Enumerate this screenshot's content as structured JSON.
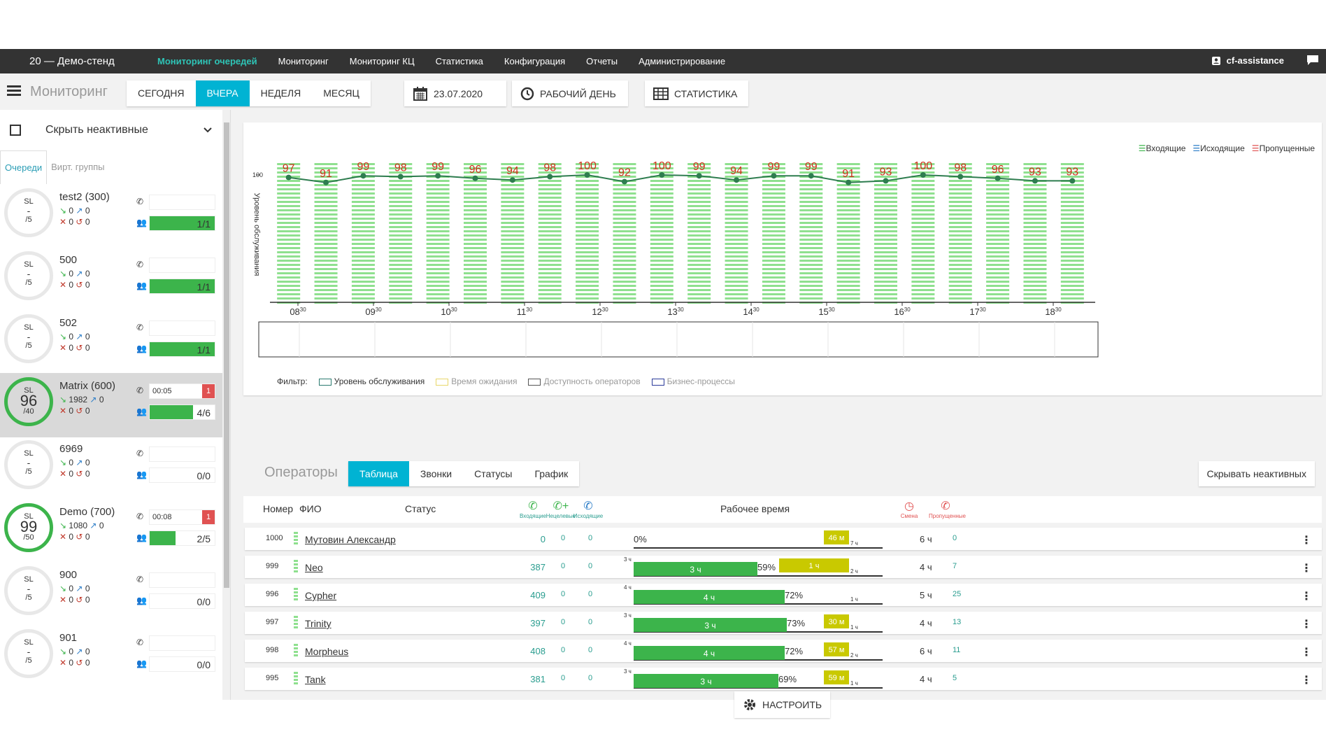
{
  "topbar": {
    "brand": "20 — Демо-стенд",
    "nav": [
      "Мониторинг очередей",
      "Мониторинг",
      "Мониторинг КЦ",
      "Статистика",
      "Конфигурация",
      "Отчеты",
      "Администрирование"
    ],
    "user": "cf-assistance"
  },
  "toolbar": {
    "title": "Мониторинг",
    "periods": [
      "СЕГОДНЯ",
      "ВЧЕРА",
      "НЕДЕЛЯ",
      "МЕСЯЦ"
    ],
    "date": "23.07.2020",
    "workday": "РАБОЧИЙ ДЕНЬ",
    "stats": "СТАТИСТИКА"
  },
  "sidebar": {
    "hide_inactive": "Скрыть неактивные",
    "tabs": [
      "Очереди",
      "Вирт. группы"
    ],
    "queues": [
      {
        "name": "test2 (300)",
        "sl_label": "SL",
        "sl": "-",
        "sub": "/5",
        "in": "0",
        "out": "0",
        "miss": "0",
        "cb": "0",
        "wait": "",
        "alert": "",
        "ops": "1/1",
        "ops_frac": 1
      },
      {
        "name": "500",
        "sl_label": "SL",
        "sl": "-",
        "sub": "/5",
        "in": "0",
        "out": "0",
        "miss": "0",
        "cb": "0",
        "wait": "",
        "alert": "",
        "ops": "1/1",
        "ops_frac": 1
      },
      {
        "name": "502",
        "sl_label": "SL",
        "sl": "-",
        "sub": "/5",
        "in": "0",
        "out": "0",
        "miss": "0",
        "cb": "0",
        "wait": "",
        "alert": "",
        "ops": "1/1",
        "ops_frac": 1
      },
      {
        "name": "Matrix (600)",
        "sl_label": "SL",
        "sl": "96",
        "sub": "/40",
        "in": "1982",
        "out": "0",
        "miss": "0",
        "cb": "0",
        "wait": "00:05",
        "alert": "1",
        "ops": "4/6",
        "ops_frac": 0.67
      },
      {
        "name": "6969",
        "sl_label": "SL",
        "sl": "-",
        "sub": "/5",
        "in": "0",
        "out": "0",
        "miss": "0",
        "cb": "0",
        "wait": "",
        "alert": "",
        "ops": "0/0",
        "ops_frac": 0
      },
      {
        "name": "Demo (700)",
        "sl_label": "SL",
        "sl": "99",
        "sub": "/50",
        "in": "1080",
        "out": "0",
        "miss": "0",
        "cb": "0",
        "wait": "00:08",
        "alert": "1",
        "ops": "2/5",
        "ops_frac": 0.4
      },
      {
        "name": "900",
        "sl_label": "SL",
        "sl": "-",
        "sub": "/5",
        "in": "0",
        "out": "0",
        "miss": "0",
        "cb": "0",
        "wait": "",
        "alert": "",
        "ops": "0/0",
        "ops_frac": 0
      },
      {
        "name": "901",
        "sl_label": "SL",
        "sl": "-",
        "sub": "/5",
        "in": "0",
        "out": "0",
        "miss": "0",
        "cb": "0",
        "wait": "",
        "alert": "",
        "ops": "0/0",
        "ops_frac": 0
      }
    ]
  },
  "chart_data": {
    "type": "bar",
    "ylabel": "Уровень обслуживания",
    "ytick": "100",
    "x_ticks": [
      "08",
      "09",
      "10",
      "11",
      "12",
      "13",
      "14",
      "15",
      "16",
      "17",
      "18"
    ],
    "x_tick_sup": "30",
    "legend": [
      "Входящие",
      "Исходящие",
      "Пропущенные"
    ],
    "service_level": [
      97,
      91,
      99,
      98,
      99,
      96,
      94,
      98,
      100,
      92,
      100,
      99,
      94,
      99,
      99,
      91,
      93,
      100,
      98,
      96,
      93,
      93
    ],
    "filter_label": "Фильтр:",
    "filters": [
      {
        "label": "Уровень обслуживания",
        "color": "#2a7a6f"
      },
      {
        "label": "Время ожидания",
        "color": "#e8d76a"
      },
      {
        "label": "Доступность операторов",
        "color": "#555555"
      },
      {
        "label": "Бизнес-процессы",
        "color": "#2a3a9a"
      }
    ],
    "colors": {
      "bar": "#8fe08f",
      "line": "#2e7d4f",
      "label": "#d0301b"
    }
  },
  "operators": {
    "title": "Операторы",
    "tabs": [
      "Таблица",
      "Звонки",
      "Статусы",
      "График"
    ],
    "hide_inactive": "Скрывать неактивных",
    "headers": {
      "num": "Номер",
      "name": "ФИО",
      "status": "Статус",
      "in": "Входящие",
      "missed_in": "Нецелевые",
      "out": "Исходящие",
      "worktime": "Рабочее время",
      "shift": "Смена",
      "missed": "Пропущенные"
    },
    "rows": [
      {
        "num": "1000",
        "name": "Мутовин Александр",
        "in": "0",
        "b": "0",
        "c": "0",
        "green": "",
        "green_frac": 0,
        "green_tick": "",
        "pct": "0%",
        "yellow": "46 м",
        "yellow_tick": "7 ч",
        "shift": "6 ч",
        "missed": "0"
      },
      {
        "num": "999",
        "name": "Neo",
        "in": "387",
        "b": "0",
        "c": "0",
        "green": "3 ч",
        "green_frac": 0.59,
        "green_tick": "3 ч",
        "pct": "59%",
        "yellow": "1 ч",
        "yellow_tick": "2 ч",
        "shift": "4 ч",
        "missed": "7"
      },
      {
        "num": "996",
        "name": "Cypher",
        "in": "409",
        "b": "0",
        "c": "0",
        "green": "4 ч",
        "green_frac": 0.72,
        "green_tick": "4 ч",
        "pct": "72%",
        "yellow": "",
        "yellow_tick": "1 ч",
        "shift": "5 ч",
        "missed": "25"
      },
      {
        "num": "997",
        "name": "Trinity",
        "in": "397",
        "b": "0",
        "c": "0",
        "green": "3 ч",
        "green_frac": 0.73,
        "green_tick": "3 ч",
        "pct": "73%",
        "yellow": "30 м",
        "yellow_tick": "1 ч",
        "shift": "4 ч",
        "missed": "13"
      },
      {
        "num": "998",
        "name": "Morpheus",
        "in": "408",
        "b": "0",
        "c": "0",
        "green": "4 ч",
        "green_frac": 0.72,
        "green_tick": "4 ч",
        "pct": "72%",
        "yellow": "57 м",
        "yellow_tick": "2 ч",
        "shift": "6 ч",
        "missed": "11"
      },
      {
        "num": "995",
        "name": "Tank",
        "in": "381",
        "b": "0",
        "c": "0",
        "green": "3 ч",
        "green_frac": 0.69,
        "green_tick": "3 ч",
        "pct": "69%",
        "yellow": "59 м",
        "yellow_tick": "1 ч",
        "shift": "4 ч",
        "missed": "5"
      }
    ],
    "configure": "НАСТРОИТЬ"
  }
}
